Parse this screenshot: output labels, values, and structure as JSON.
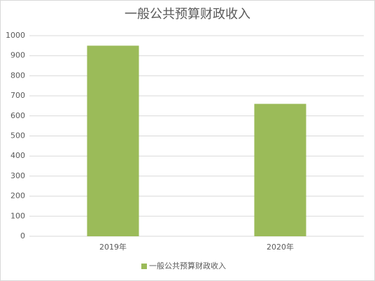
{
  "chart_data": {
    "type": "bar",
    "title": "一般公共预算财政收入",
    "categories": [
      "2019年",
      "2020年"
    ],
    "series": [
      {
        "name": "一般公共预算财政收入",
        "color": "#9bbb59",
        "values": [
          950,
          660
        ]
      }
    ],
    "ylim": [
      0,
      1000
    ],
    "yticks": [
      0,
      100,
      200,
      300,
      400,
      500,
      600,
      700,
      800,
      900,
      1000
    ],
    "grid": true,
    "legend": "bottom"
  }
}
